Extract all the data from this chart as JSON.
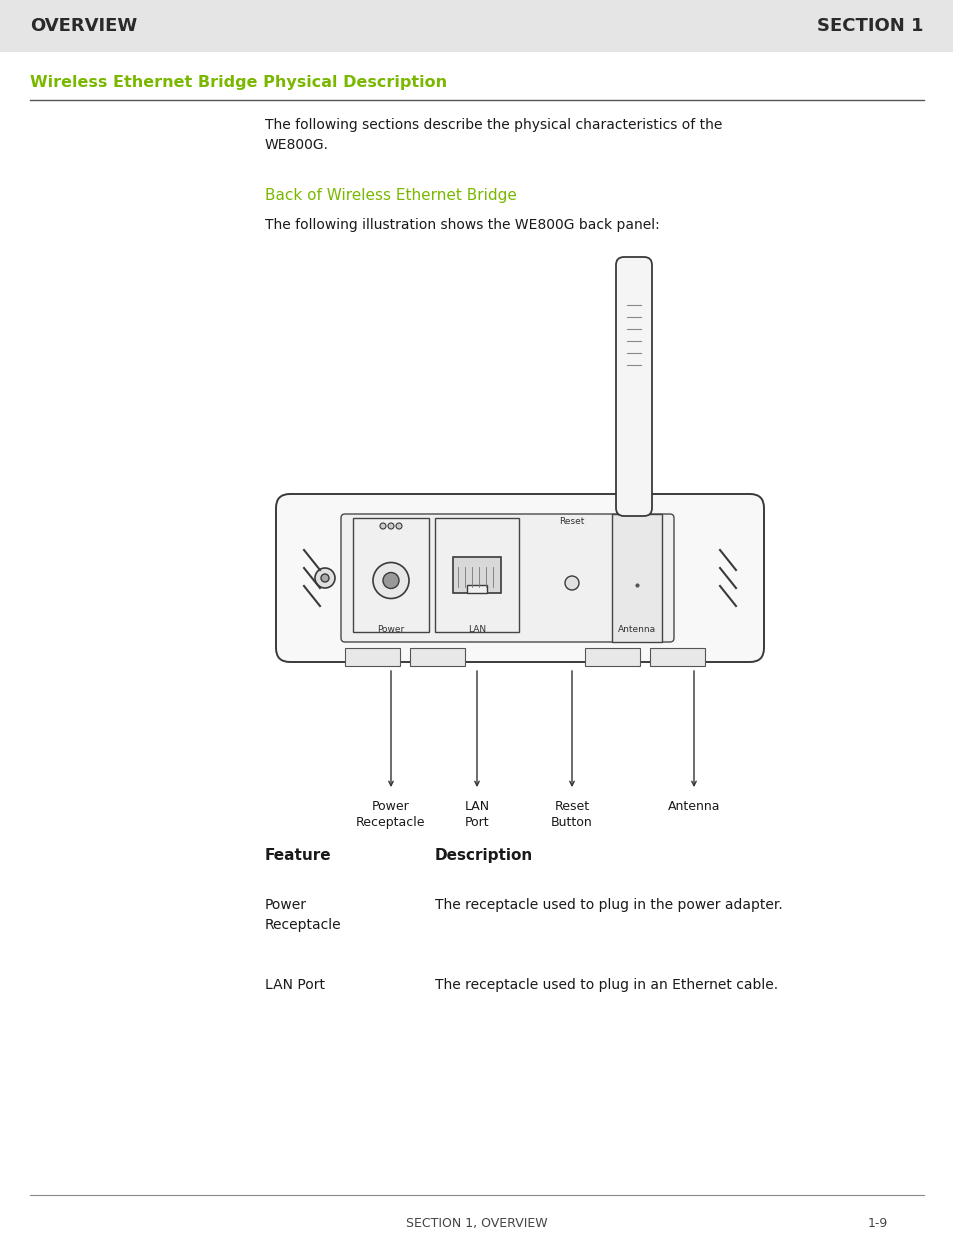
{
  "bg_color": "#ffffff",
  "header_bg": "#e5e5e5",
  "header_text_left": "OVERVIEW",
  "header_text_right": "SECTION 1",
  "header_text_color": "#2a2a2a",
  "section_title": "Wireless Ethernet Bridge Physical Description",
  "section_title_color": "#7ab800",
  "subsection_title": "Back of Wireless Ethernet Bridge",
  "subsection_title_color": "#7ab800",
  "body_text_color": "#1a1a1a",
  "para1": "The following sections describe the physical characteristics of the\nWE800G.",
  "para2": "The following illustration shows the WE800G back panel:",
  "footer_left": "SECTION 1, OVERVIEW",
  "footer_right": "1-9",
  "footer_text_color": "#444444",
  "table_feature_col": "Feature",
  "table_desc_col": "Description",
  "table_rows": [
    [
      "Power\nReceptacle",
      "The receptacle used to plug in the power adapter."
    ],
    [
      "LAN Port",
      "The receptacle used to plug in an Ethernet cable."
    ]
  ],
  "label_power_receptacle": "Power\nReceptacle",
  "label_lan_port": "LAN\nPort",
  "label_reset_button": "Reset\nButton",
  "label_antenna": "Antenna"
}
